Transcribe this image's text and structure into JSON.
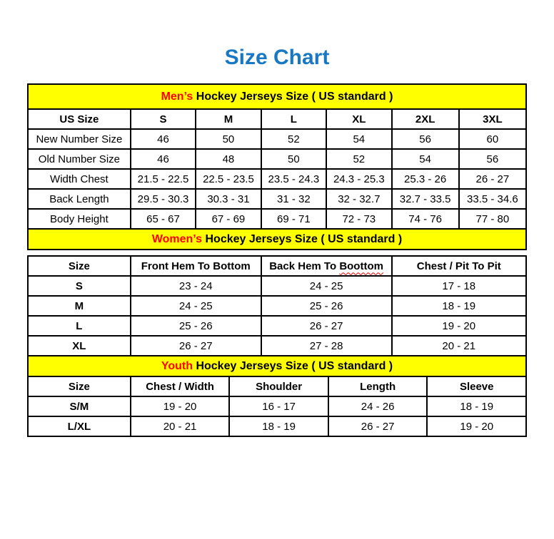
{
  "title": "Size Chart",
  "colors": {
    "title_blue": "#1878c4",
    "banner_yellow": "#ffff00",
    "highlight_red": "#ff0000",
    "grid_black": "#000000"
  },
  "sections": [
    {
      "id": "mens",
      "band": {
        "highlight": "Men’s",
        "rest": " Hockey Jerseys Size ( US standard )"
      },
      "table": {
        "columns": [
          "US Size",
          "S",
          "M",
          "L",
          "XL",
          "2XL",
          "3XL"
        ],
        "rows": [
          [
            "New Number Size",
            "46",
            "50",
            "52",
            "54",
            "56",
            "60"
          ],
          [
            "Old Number Size",
            "46",
            "48",
            "50",
            "52",
            "54",
            "56"
          ],
          [
            "Width Chest",
            "21.5 - 22.5",
            "22.5 - 23.5",
            "23.5 - 24.3",
            "24.3 - 25.3",
            "25.3 - 26",
            "26 - 27"
          ],
          [
            "Back Length",
            "29.5 - 30.3",
            "30.3 - 31",
            "31 - 32",
            "32 - 32.7",
            "32.7 - 33.5",
            "33.5 - 34.6"
          ],
          [
            "Body Height",
            "65 - 67",
            "67 - 69",
            "69 - 71",
            "72 - 73",
            "74 - 76",
            "77 - 80"
          ]
        ]
      }
    },
    {
      "id": "womens",
      "band": {
        "highlight": "Women’s",
        "rest": " Hockey Jerseys Size ( US standard )"
      },
      "table": {
        "columns": [
          "Size",
          "Front Hem To Bottom",
          "Back Hem To Boottom",
          "Chest / Pit To Pit"
        ],
        "spellcheck_word": "Boottom",
        "rows": [
          [
            "S",
            "23 - 24",
            "24 - 25",
            "17 - 18"
          ],
          [
            "M",
            "24 - 25",
            "25 - 26",
            "18 - 19"
          ],
          [
            "L",
            "25 - 26",
            "26 - 27",
            "19 - 20"
          ],
          [
            "XL",
            "26 - 27",
            "27 - 28",
            "20 - 21"
          ]
        ]
      }
    },
    {
      "id": "youth",
      "band": {
        "highlight": "Youth",
        "rest": " Hockey Jerseys Size ( US standard )"
      },
      "table": {
        "columns": [
          "Size",
          "Chest / Width",
          "Shoulder",
          "Length",
          "Sleeve"
        ],
        "rows": [
          [
            "S/M",
            "19 - 20",
            "16 - 17",
            "24 - 26",
            "18 - 19"
          ],
          [
            "L/XL",
            "20 - 21",
            "18 - 19",
            "26 - 27",
            "19 - 20"
          ]
        ]
      }
    }
  ]
}
